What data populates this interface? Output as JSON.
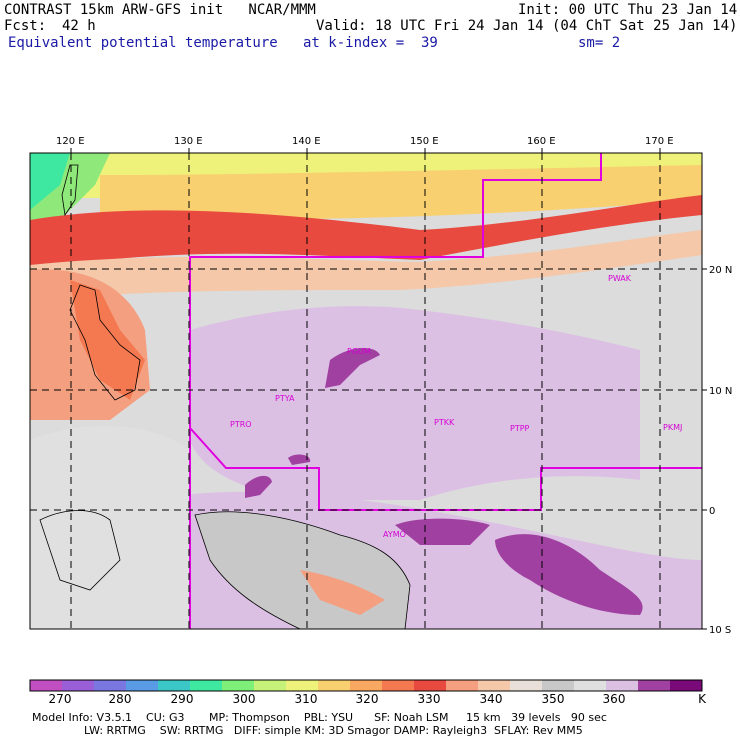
{
  "header": {
    "title": "CONTRAST 15km ARW-GFS init   NCAR/MMM",
    "init": "Init: 00 UTC Thu 23 Jan 14",
    "fcst_label": "Fcst:",
    "fcst_value": "42 h",
    "valid": "Valid: 18 UTC Fri 24 Jan 14 (04 ChT Sat 25 Jan 14)",
    "field": "Equivalent potential temperature",
    "level": "at k-index =  39",
    "smoothing": "sm= 2"
  },
  "map": {
    "lon_labels": [
      "120 E",
      "130 E",
      "140 E",
      "150 E",
      "160 E",
      "170 E"
    ],
    "lat_labels": [
      "20 N",
      "10 N",
      "0",
      "10 S"
    ],
    "stations": [
      "PWAK",
      "PGUM",
      "PTYA",
      "PTRO",
      "PTKK",
      "PTPP",
      "PKMJ",
      "AYMO"
    ]
  },
  "colorbar": {
    "labels": [
      "270",
      "280",
      "290",
      "300",
      "310",
      "320",
      "330",
      "340",
      "350",
      "360"
    ],
    "unit": "K",
    "colors": [
      "#c24fc2",
      "#9a5fd6",
      "#7a78e0",
      "#5a9be6",
      "#3cc7c7",
      "#3fe8a0",
      "#7ef07a",
      "#c6f27a",
      "#eef27a",
      "#f8d070",
      "#f8a860",
      "#f47850",
      "#e84a40",
      "#f4a080",
      "#f4c8a8",
      "#e8e0d8",
      "#c8c8c8",
      "#e0e0e0",
      "#dcc0e4",
      "#a040a0",
      "#7a0a7a"
    ]
  },
  "model_info": {
    "line1": "Model Info: V3.5.1    CU: G3       MP: Thompson    PBL: YSU      SF: Noah LSM     15 km   39 levels   90 sec",
    "line2": "LW: RRTMG    SW: RRTMG   DIFF: simple KM: 3D Smagor DAMP: Rayleigh3  SFLAY: Rev MM5"
  }
}
